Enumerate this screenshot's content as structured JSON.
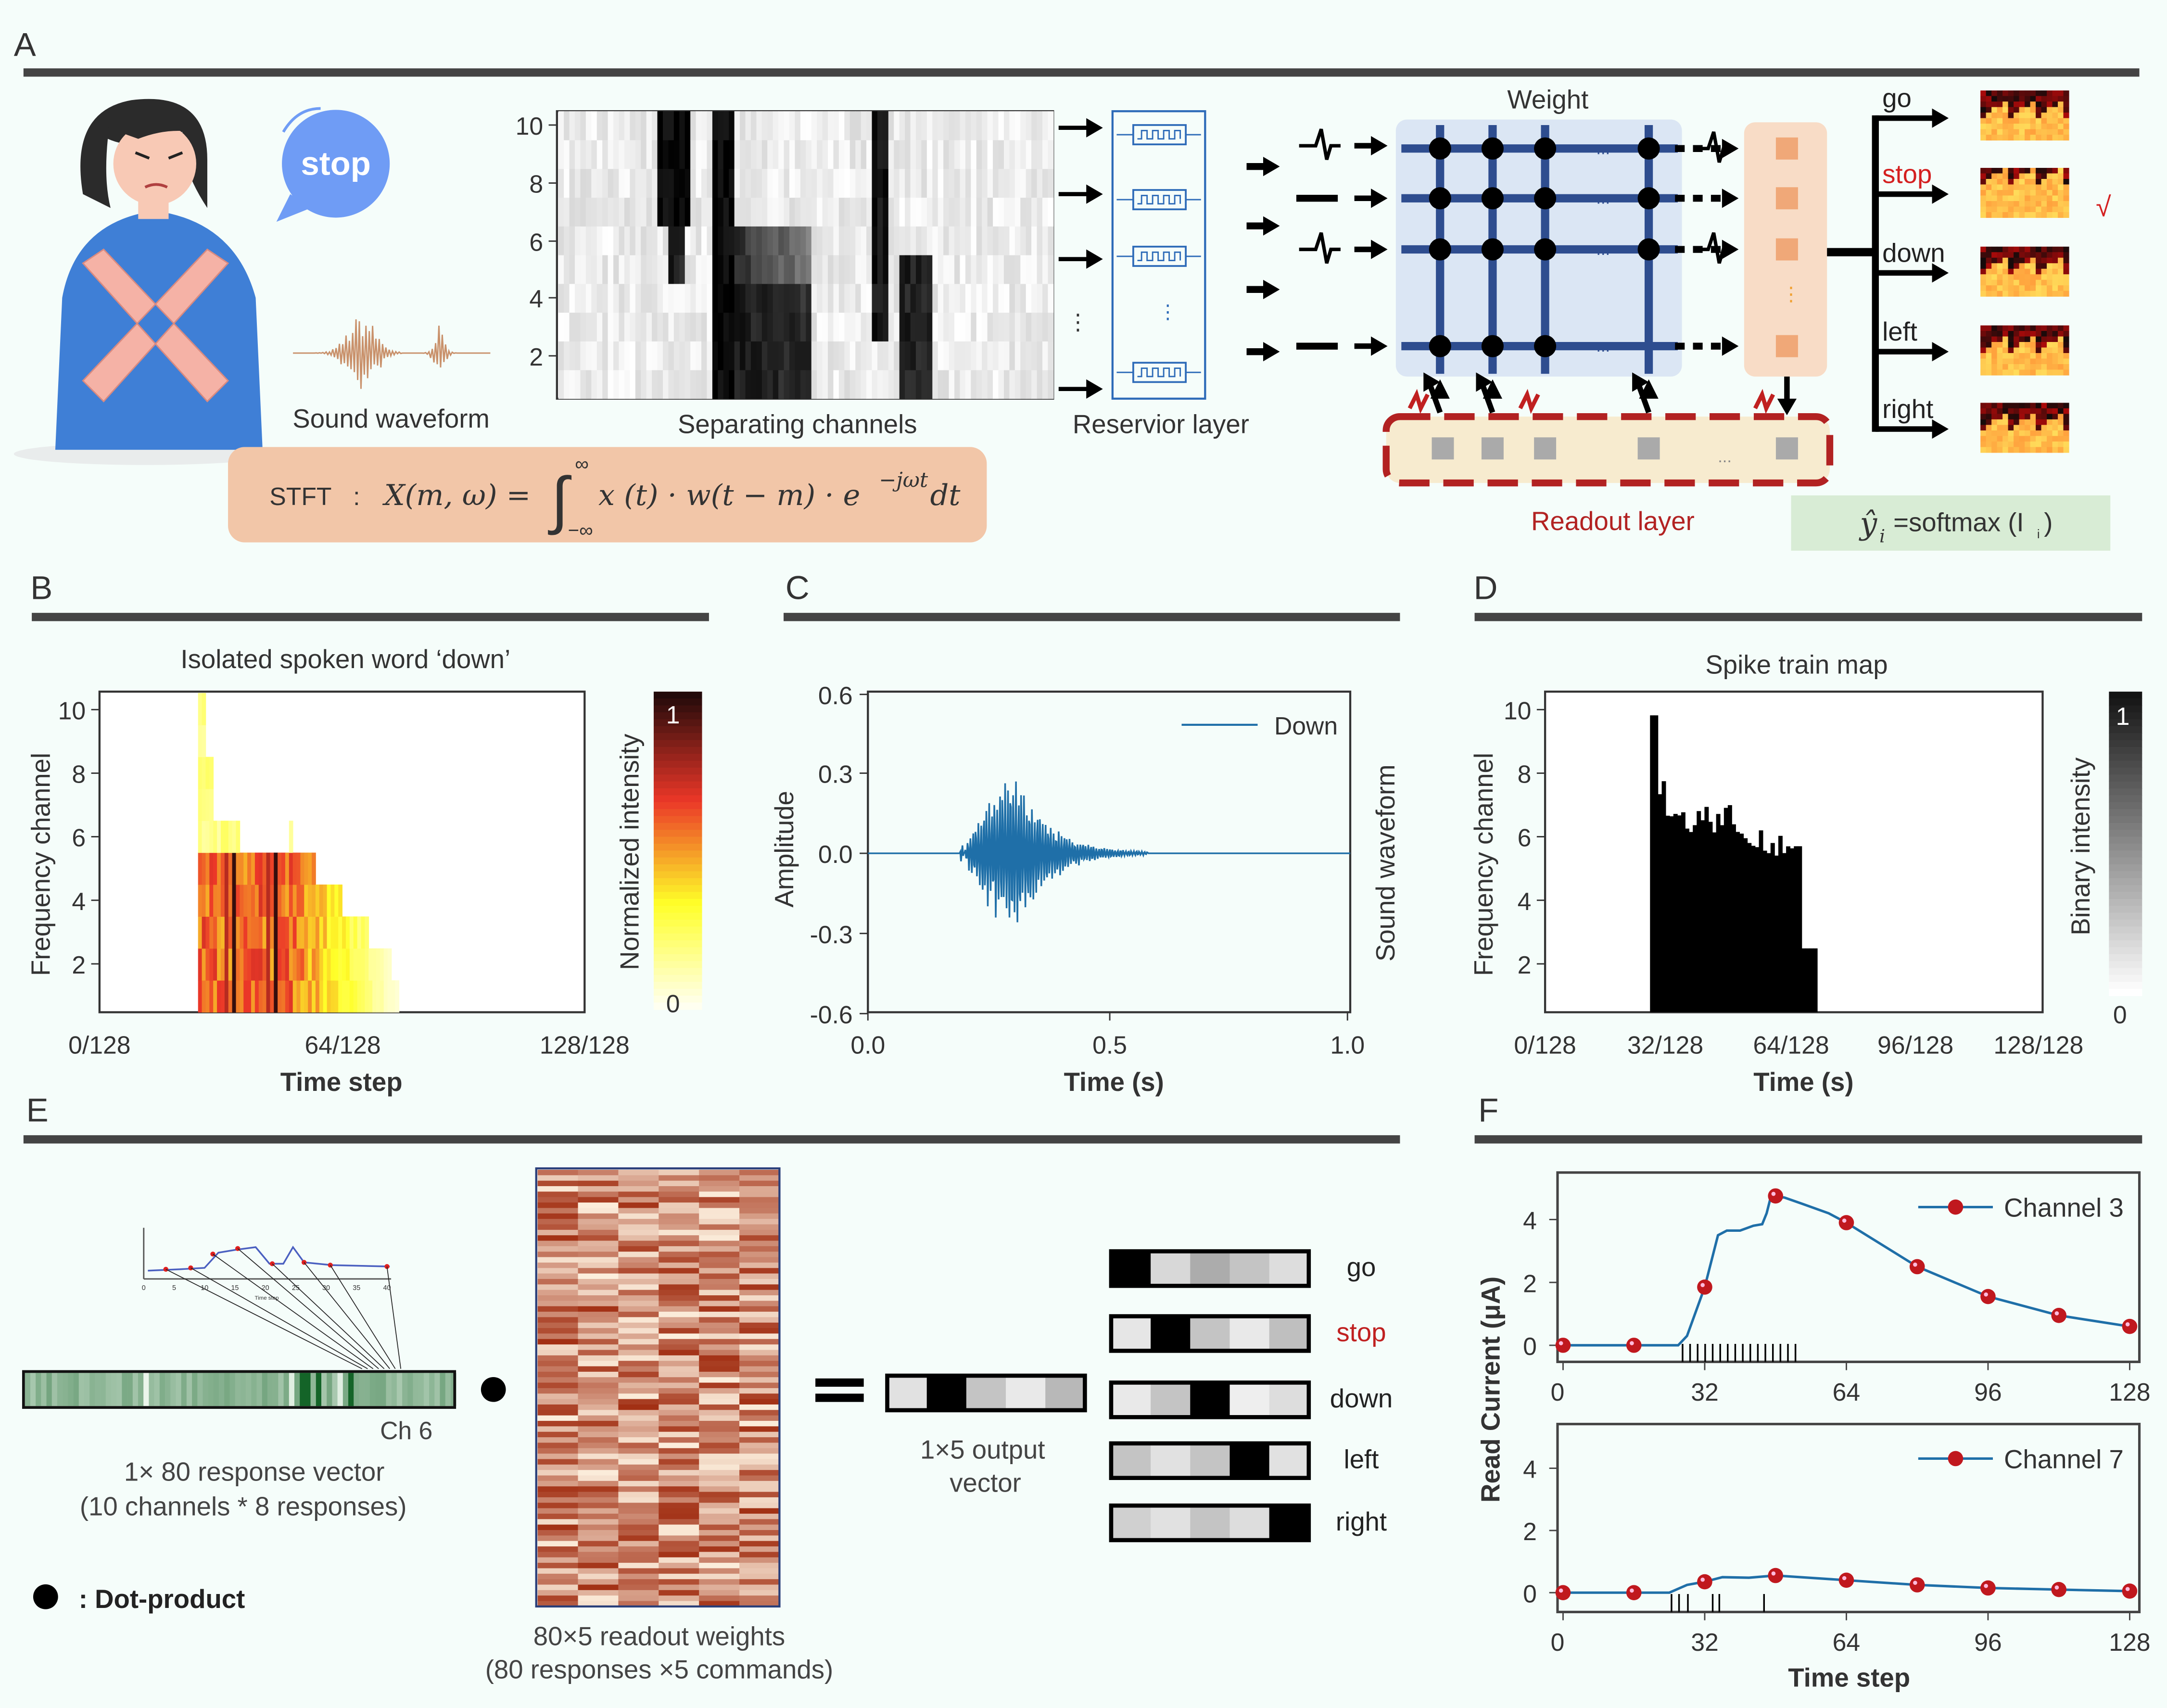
{
  "background": "#f5fdfa",
  "panel_labels": {
    "a": "A",
    "b": "B",
    "c": "C",
    "d": "D",
    "e": "E",
    "f": "F"
  },
  "panel_a": {
    "bubble_text": "stop",
    "bubble_color": "#6f9cf5",
    "sound_waveform_label": "Sound waveform",
    "spectrogram_yticks": [
      "10",
      "8",
      "6",
      "4",
      "2"
    ],
    "spectrogram_label": "Separating channels",
    "reservoir_label": "Reservior layer",
    "vertical_ellipsis": "⋮",
    "stft": {
      "prefix": "STFT",
      "colon": ":",
      "lhs": "X(m, ω) =",
      "integral": "∫",
      "upper_limit": "∞",
      "lower_limit": "−∞",
      "integrand": "x (t) · w(t −  m) · e",
      "exponent": "−jωt",
      "differential": "dt"
    },
    "weight_label": "Weight",
    "ellipsis": "...",
    "readout_label": "Readout layer",
    "softmax": {
      "lhs": "ŷ",
      "lhs_sub": "i",
      "rhs": " =softmax (I",
      "rhs_sub": "i",
      "close": ")"
    },
    "outputs": [
      {
        "label": "go",
        "color": "#222222"
      },
      {
        "label": "stop",
        "color": "#d42020"
      },
      {
        "label": "down",
        "color": "#222222"
      },
      {
        "label": "left",
        "color": "#222222"
      },
      {
        "label": "right",
        "color": "#222222"
      }
    ],
    "check_mark": "√",
    "accent_blue": "#2e4d8f",
    "readout_red": "#b22222"
  },
  "panel_e": {
    "ch_label": "Ch 6",
    "response_vector_label": "1× 80 response vector",
    "response_vector_sub": "(10 channels * 8 responses)",
    "dot_legend": ": Dot-product",
    "weights_label": "80×5 readout weights",
    "weights_sub": "(80 responses ×5 commands)",
    "equals": "=",
    "output_label_1": "1×5 output",
    "output_label_2": "vector",
    "inset_xticks": [
      "0",
      "5",
      "10",
      "15",
      "20",
      "25",
      "30",
      "35",
      "40"
    ],
    "inset_xlabel": "Time step",
    "output_vector_levels": [
      0.08,
      1,
      0.2,
      0.05,
      0.25
    ],
    "commands": [
      {
        "label": "go",
        "color": "#222222",
        "levels": [
          1,
          0.12,
          0.3,
          0.2,
          0.1
        ]
      },
      {
        "label": "stop",
        "color": "#c02020",
        "levels": [
          0.06,
          1,
          0.2,
          0.05,
          0.22
        ]
      },
      {
        "label": "down",
        "color": "#222222",
        "levels": [
          0.05,
          0.2,
          1,
          0.03,
          0.1
        ]
      },
      {
        "label": "left",
        "color": "#222222",
        "levels": [
          0.2,
          0.08,
          0.2,
          1,
          0.08
        ]
      },
      {
        "label": "right",
        "color": "#222222",
        "levels": [
          0.15,
          0.08,
          0.2,
          0.1,
          1
        ]
      }
    ]
  },
  "chart_data": [
    {
      "id": "B",
      "type": "heatmap",
      "title": "Isolated spoken word ‘down’",
      "xlabel": "Time step",
      "ylabel": "Frequency channel",
      "xticks": [
        "0/128",
        "64/128",
        "128/128"
      ],
      "yticks": [
        "2",
        "4",
        "6",
        "8",
        "10"
      ],
      "active_time_steps": [
        26,
        79
      ],
      "colorbar": {
        "label": "Normalized  intensity",
        "ticks": [
          "0",
          "1"
        ],
        "colormap": "hot (white-yellow-red-black)"
      }
    },
    {
      "id": "C",
      "type": "line",
      "xlabel": "Time (s)",
      "ylabel": "Amplitude",
      "right_label": "Sound waveform",
      "xticks": [
        "0.0",
        "0.5",
        "1.0"
      ],
      "yticks": [
        "0.6",
        "0.3",
        "0.0",
        "-0.3",
        "-0.6"
      ],
      "xlim": [
        0,
        1
      ],
      "ylim": [
        -0.6,
        0.6
      ],
      "legend": "top-right",
      "series": [
        {
          "name": "Down",
          "color": "#1f6fa8",
          "onset_s": 0.2,
          "peak_s": 0.3,
          "peak_amplitude": 0.35,
          "min_amplitude": -0.3,
          "end_s": 0.58
        }
      ]
    },
    {
      "id": "D",
      "type": "heatmap",
      "title": "Spike train map",
      "xlabel": "Time (s)",
      "ylabel": "Frequency channel",
      "xticks": [
        "0/128",
        "32/128",
        "64/128",
        "96/128",
        "128/128"
      ],
      "yticks": [
        "2",
        "4",
        "6",
        "8",
        "10"
      ],
      "active_time_steps": [
        27,
        70
      ],
      "colorbar": {
        "label": "Binary intensity",
        "ticks": [
          "0",
          "1"
        ],
        "colormap": "gray"
      }
    },
    {
      "id": "F",
      "type": "line",
      "ylabel": "Read Current (μA)",
      "xlabel": "Time step",
      "xticks": [
        "0",
        "32",
        "64",
        "96",
        "128"
      ],
      "yticks": [
        "0",
        "2",
        "4"
      ],
      "xlim": [
        0,
        128
      ],
      "ylim": [
        -0.5,
        5.4
      ],
      "legend": "top-right",
      "marker_x": [
        0,
        16,
        32,
        48,
        64,
        80,
        96,
        112,
        128
      ],
      "series": [
        {
          "name": "Channel 3",
          "color": "#1f6fa8",
          "marker_color": "#c0181e",
          "marker_y": [
            0,
            0,
            1.85,
            4.75,
            3.9,
            2.5,
            1.55,
            0.95,
            0.6
          ],
          "curve": [
            [
              0,
              0
            ],
            [
              26,
              0
            ],
            [
              28,
              0.3
            ],
            [
              32,
              1.85
            ],
            [
              35,
              3.5
            ],
            [
              37,
              3.65
            ],
            [
              40,
              3.65
            ],
            [
              43,
              3.8
            ],
            [
              45,
              3.85
            ],
            [
              46,
              4.2
            ],
            [
              47,
              4.75
            ],
            [
              50,
              4.7
            ],
            [
              54,
              4.5
            ],
            [
              60,
              4.2
            ],
            [
              64,
              3.9
            ],
            [
              80,
              2.5
            ],
            [
              96,
              1.55
            ],
            [
              112,
              0.95
            ],
            [
              128,
              0.6
            ]
          ],
          "spikes": [
            27,
            28.7,
            30.4,
            32.1,
            33.8,
            35.5,
            37.2,
            38.9,
            40.6,
            42.3,
            44,
            45.7,
            47.4,
            49.1,
            50.8,
            52.5
          ]
        },
        {
          "name": "Channel 7",
          "color": "#1f6fa8",
          "marker_color": "#c0181e",
          "marker_y": [
            0,
            0,
            0.35,
            0.55,
            0.4,
            0.25,
            0.15,
            0.1,
            0.05
          ],
          "curve": [
            [
              0,
              0
            ],
            [
              24,
              0
            ],
            [
              28,
              0.25
            ],
            [
              32,
              0.35
            ],
            [
              36,
              0.5
            ],
            [
              42,
              0.48
            ],
            [
              48,
              0.55
            ],
            [
              64,
              0.4
            ],
            [
              80,
              0.25
            ],
            [
              96,
              0.15
            ],
            [
              112,
              0.1
            ],
            [
              128,
              0.05
            ]
          ],
          "spikes": [
            24.5,
            26.2,
            28.2,
            33.8,
            35.3,
            45.4
          ]
        }
      ]
    }
  ]
}
